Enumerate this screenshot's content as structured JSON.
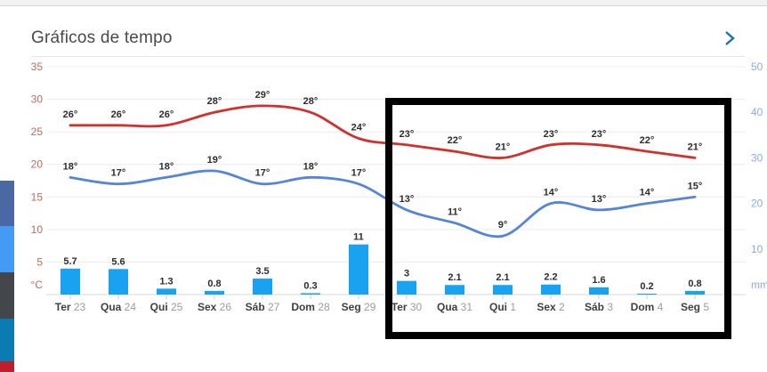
{
  "header": {
    "title": "Gráficos de tempo",
    "more_icon": "chevron-right",
    "more_icon_color": "#1d6fa5"
  },
  "share_strip": {
    "buttons": [
      {
        "name": "share-button-1",
        "color": "#4a69a4"
      },
      {
        "name": "share-button-2",
        "color": "#449bf5"
      },
      {
        "name": "share-button-3",
        "color": "#43474c"
      },
      {
        "name": "share-button-4",
        "color": "#0b7cb2"
      },
      {
        "name": "share-button-5",
        "color": "#bf1f2c"
      }
    ]
  },
  "annotation": {
    "shape": "rectangle",
    "color": "#000000",
    "purpose": "highlight-second-week"
  },
  "chart_data": {
    "type": "line+bar",
    "title": "Gráficos de tempo",
    "categories": [
      {
        "day": "Ter",
        "date": "23"
      },
      {
        "day": "Qua",
        "date": "24"
      },
      {
        "day": "Qui",
        "date": "25"
      },
      {
        "day": "Sex",
        "date": "26"
      },
      {
        "day": "Sáb",
        "date": "27"
      },
      {
        "day": "Dom",
        "date": "28"
      },
      {
        "day": "Seg",
        "date": "29"
      },
      {
        "day": "Ter",
        "date": "30"
      },
      {
        "day": "Qua",
        "date": "31"
      },
      {
        "day": "Qui",
        "date": "1"
      },
      {
        "day": "Sex",
        "date": "2"
      },
      {
        "day": "Sáb",
        "date": "3"
      },
      {
        "day": "Dom",
        "date": "4"
      },
      {
        "day": "Seg",
        "date": "5"
      }
    ],
    "series": [
      {
        "name": "temperatura-maxima",
        "type": "line",
        "axis": "left",
        "unit": "°",
        "color": "#d2302c",
        "values": [
          26,
          26,
          26,
          28,
          29,
          28,
          24,
          23,
          22,
          21,
          23,
          23,
          22,
          21
        ]
      },
      {
        "name": "temperatura-minima",
        "type": "line",
        "axis": "left",
        "unit": "°",
        "color": "#5585d8",
        "values": [
          18,
          17,
          18,
          19,
          17,
          18,
          17,
          13,
          11,
          9,
          14,
          13,
          14,
          15
        ]
      },
      {
        "name": "precipitacao",
        "type": "bar",
        "axis": "right",
        "unit": "mm",
        "color": "#19a2ef",
        "values": [
          5.7,
          5.6,
          1.3,
          0.8,
          3.5,
          0.3,
          11,
          3,
          2.1,
          2.1,
          2.2,
          1.6,
          0.2,
          0.8
        ]
      }
    ],
    "left_axis": {
      "unit": "°C",
      "ticks": [
        35,
        30,
        25,
        20,
        15,
        10,
        5
      ],
      "range": [
        0,
        35
      ],
      "color": "#bd6a60"
    },
    "right_axis": {
      "unit": "mm",
      "ticks": [
        50,
        40,
        30,
        20,
        10
      ],
      "range": [
        0,
        50
      ],
      "color": "#8cabdd"
    },
    "grid": true,
    "legend": "none",
    "value_label_color": "#2d2d2d",
    "day_label_color": "#3f3f3f",
    "date_label_color": "#9c9c9c"
  }
}
